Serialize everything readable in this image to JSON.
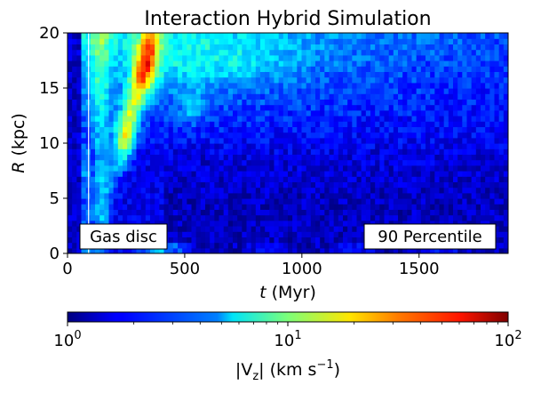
{
  "chart_data": {
    "type": "heatmap",
    "title": "Interaction Hybrid Simulation",
    "xlabel_var": "t",
    "xlabel_unit": " (Myr)",
    "ylabel_var": "R",
    "ylabel_unit": " (kpc)",
    "xlim": [
      0,
      1880
    ],
    "ylim": [
      0,
      20
    ],
    "xticks": [
      0,
      500,
      1000,
      1500
    ],
    "yticks": [
      0,
      5,
      10,
      15,
      20
    ],
    "vertical_line_t": 90,
    "annotations": {
      "left": "Gas disc",
      "right": "90 Percentile"
    },
    "colorbar": {
      "colormap": "jet",
      "scale": "log",
      "min": 1,
      "max": 100,
      "tick_bases": [
        "10",
        "10",
        "10"
      ],
      "tick_exponents": [
        "0",
        "1",
        "2"
      ],
      "label_var": "|V",
      "label_sub": "z",
      "label_unit": "| (km s",
      "label_exp": "−1",
      "label_close": ")"
    },
    "features": [
      {
        "name": "inner-low-vertical-motion",
        "t_range": [
          0,
          90
        ],
        "R_range": [
          0,
          20
        ],
        "approx_Vz": 1.2
      },
      {
        "name": "tidal-arc-peak",
        "t_range": [
          180,
          420
        ],
        "R_range": [
          8,
          20
        ],
        "approx_Vz": 50
      },
      {
        "name": "outer-disc-moderate",
        "t_range": [
          450,
          1880
        ],
        "R_range": [
          13,
          20
        ],
        "approx_Vz": 6
      },
      {
        "name": "inner-disc-quiescent",
        "t_range": [
          400,
          1880
        ],
        "R_range": [
          0,
          10
        ],
        "approx_Vz": 1.5
      }
    ]
  }
}
